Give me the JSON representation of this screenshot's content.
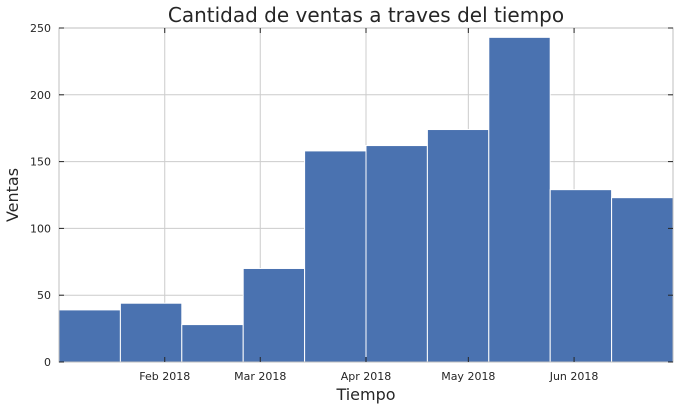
{
  "chart_data": {
    "type": "bar",
    "title": "Cantidad de ventas a traves del tiempo",
    "xlabel": "Tiempo",
    "ylabel": "Ventas",
    "ylim": [
      0,
      250
    ],
    "yticks": [
      0,
      50,
      100,
      150,
      200,
      250
    ],
    "xlim": [
      "2018-01-01",
      "2018-06-30"
    ],
    "xticks": [
      {
        "date": "2018-02-01",
        "label": "Feb 2018"
      },
      {
        "date": "2018-03-01",
        "label": "Mar 2018"
      },
      {
        "date": "2018-04-01",
        "label": "Apr 2018"
      },
      {
        "date": "2018-05-01",
        "label": "May 2018"
      },
      {
        "date": "2018-06-01",
        "label": "Jun 2018"
      }
    ],
    "bins": [
      {
        "start": "2018-01-01",
        "end": "2018-01-19",
        "value": 39
      },
      {
        "start": "2018-01-19",
        "end": "2018-02-06",
        "value": 44
      },
      {
        "start": "2018-02-06",
        "end": "2018-02-24",
        "value": 28
      },
      {
        "start": "2018-02-24",
        "end": "2018-03-14",
        "value": 70
      },
      {
        "start": "2018-03-14",
        "end": "2018-04-01",
        "value": 158
      },
      {
        "start": "2018-04-01",
        "end": "2018-04-19",
        "value": 162
      },
      {
        "start": "2018-04-19",
        "end": "2018-05-07",
        "value": 174
      },
      {
        "start": "2018-05-07",
        "end": "2018-05-25",
        "value": 243
      },
      {
        "start": "2018-05-25",
        "end": "2018-06-12",
        "value": 129
      },
      {
        "start": "2018-06-12",
        "end": "2018-06-30",
        "value": 123
      }
    ],
    "grid": true,
    "bar_color": "#4a72b0"
  }
}
